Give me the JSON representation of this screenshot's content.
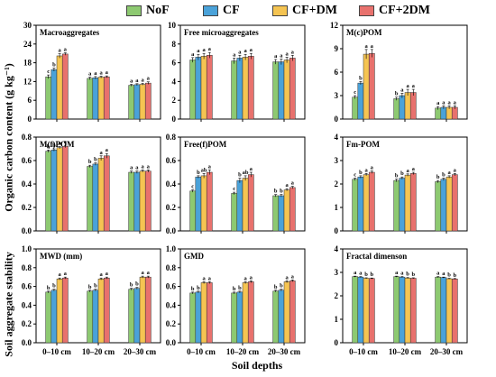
{
  "legend": {
    "items": [
      {
        "label": "NoF",
        "color": "#8dc971"
      },
      {
        "label": "CF",
        "color": "#4aa2d9"
      },
      {
        "label": "CF+DM",
        "color": "#f5c452"
      },
      {
        "label": "CF+2DM",
        "color": "#e8716d"
      }
    ]
  },
  "row_labels": {
    "organic_carbon": "Organic carbon content (g kg⁻¹)",
    "aggregate_stability": "Soil aggregate stability"
  },
  "x_axis_title": "Soil depths",
  "chart_data": [
    {
      "type": "bar",
      "title": "Macroaggregates",
      "categories": [
        "0–10 cm",
        "10–20 cm",
        "20–30 cm"
      ],
      "yticks": [
        "0",
        "6",
        "12",
        "18",
        "24",
        "30"
      ],
      "ylim": [
        0,
        30
      ],
      "series": [
        {
          "name": "NoF",
          "values": [
            13.5,
            13.0,
            10.8
          ],
          "errors": [
            0.6,
            0.4,
            0.3
          ],
          "letters": [
            "c",
            "a",
            "a"
          ]
        },
        {
          "name": "CF",
          "values": [
            15.8,
            13.2,
            11.0
          ],
          "errors": [
            0.5,
            0.4,
            0.3
          ],
          "letters": [
            "b",
            "a",
            "a"
          ]
        },
        {
          "name": "CF+DM",
          "values": [
            20.2,
            13.4,
            11.1
          ],
          "errors": [
            0.7,
            0.3,
            0.3
          ],
          "letters": [
            "a",
            "a",
            "a"
          ]
        },
        {
          "name": "CF+2DM",
          "values": [
            20.8,
            13.5,
            11.5
          ],
          "errors": [
            0.4,
            0.3,
            0.4
          ],
          "letters": [
            "a",
            "a",
            "a"
          ]
        }
      ]
    },
    {
      "type": "bar",
      "title": "Free microaggregates",
      "categories": [
        "0–10 cm",
        "10–20 cm",
        "20–30 cm"
      ],
      "yticks": [
        "0",
        "2",
        "4",
        "6",
        "8",
        "10"
      ],
      "ylim": [
        0,
        10
      ],
      "series": [
        {
          "name": "NoF",
          "values": [
            6.3,
            6.2,
            6.1
          ],
          "errors": [
            0.25,
            0.3,
            0.25
          ],
          "letters": [
            "a",
            "a",
            "a"
          ]
        },
        {
          "name": "CF",
          "values": [
            6.6,
            6.5,
            6.1
          ],
          "errors": [
            0.3,
            0.3,
            0.3
          ],
          "letters": [
            "a",
            "a",
            "a"
          ]
        },
        {
          "name": "CF+DM",
          "values": [
            6.7,
            6.6,
            6.3
          ],
          "errors": [
            0.3,
            0.3,
            0.3
          ],
          "letters": [
            "a",
            "a",
            "a"
          ]
        },
        {
          "name": "CF+2DM",
          "values": [
            6.8,
            6.7,
            6.5
          ],
          "errors": [
            0.3,
            0.3,
            0.3
          ],
          "letters": [
            "a",
            "a",
            "a"
          ]
        }
      ]
    },
    {
      "type": "bar",
      "title": "M(c)POM",
      "categories": [
        "0–10 cm",
        "10–20 cm",
        "20–30 cm"
      ],
      "yticks": [
        "0",
        "3",
        "6",
        "9",
        "12"
      ],
      "ylim": [
        0,
        12
      ],
      "series": [
        {
          "name": "NoF",
          "values": [
            2.8,
            2.6,
            1.4
          ],
          "errors": [
            0.2,
            0.2,
            0.2
          ],
          "letters": [
            "c",
            "b",
            "a"
          ]
        },
        {
          "name": "CF",
          "values": [
            4.6,
            3.0,
            1.5
          ],
          "errors": [
            0.2,
            0.3,
            0.2
          ],
          "letters": [
            "b",
            "a",
            "a"
          ]
        },
        {
          "name": "CF+DM",
          "values": [
            8.3,
            3.4,
            1.5
          ],
          "errors": [
            0.6,
            0.4,
            0.2
          ],
          "letters": [
            "a",
            "a",
            "a"
          ]
        },
        {
          "name": "CF+2DM",
          "values": [
            8.4,
            3.4,
            1.5
          ],
          "errors": [
            0.5,
            0.4,
            0.2
          ],
          "letters": [
            "a",
            "a",
            "a"
          ]
        }
      ]
    },
    {
      "type": "bar",
      "title": "M(f)POM",
      "categories": [
        "0–10 cm",
        "10–20 cm",
        "20–30 cm"
      ],
      "yticks": [
        "0.0",
        "0.2",
        "0.4",
        "0.6",
        "0.8"
      ],
      "ylim": [
        0,
        0.8
      ],
      "series": [
        {
          "name": "NoF",
          "values": [
            0.68,
            0.55,
            0.5
          ],
          "errors": [
            0.01,
            0.01,
            0.01
          ],
          "letters": [
            "b",
            "b",
            "a"
          ]
        },
        {
          "name": "CF",
          "values": [
            0.69,
            0.57,
            0.5
          ],
          "errors": [
            0.01,
            0.01,
            0.01
          ],
          "letters": [
            "b",
            "b",
            "a"
          ]
        },
        {
          "name": "CF+DM",
          "values": [
            0.71,
            0.62,
            0.51
          ],
          "errors": [
            0.01,
            0.02,
            0.01
          ],
          "letters": [
            "a",
            "a",
            "a"
          ]
        },
        {
          "name": "CF+2DM",
          "values": [
            0.72,
            0.64,
            0.51
          ],
          "errors": [
            0.01,
            0.02,
            0.01
          ],
          "letters": [
            "a",
            "a",
            "a"
          ]
        }
      ]
    },
    {
      "type": "bar",
      "title": "Free(f)POM",
      "categories": [
        "0–10 cm",
        "10–20 cm",
        "20–30 cm"
      ],
      "yticks": [
        "0.0",
        "0.2",
        "0.4",
        "0.6",
        "0.8"
      ],
      "ylim": [
        0,
        0.8
      ],
      "series": [
        {
          "name": "NoF",
          "values": [
            0.34,
            0.32,
            0.3
          ],
          "errors": [
            0.01,
            0.01,
            0.01
          ],
          "letters": [
            "c",
            "c",
            "b"
          ]
        },
        {
          "name": "CF",
          "values": [
            0.46,
            0.43,
            0.3
          ],
          "errors": [
            0.01,
            0.02,
            0.01
          ],
          "letters": [
            "b",
            "b",
            "b"
          ]
        },
        {
          "name": "CF+DM",
          "values": [
            0.47,
            0.45,
            0.35
          ],
          "errors": [
            0.02,
            0.02,
            0.01
          ],
          "letters": [
            "ab",
            "ab",
            "a"
          ]
        },
        {
          "name": "CF+2DM",
          "values": [
            0.5,
            0.48,
            0.37
          ],
          "errors": [
            0.02,
            0.02,
            0.01
          ],
          "letters": [
            "a",
            "a",
            "a"
          ]
        }
      ]
    },
    {
      "type": "bar",
      "title": "Fm-POM",
      "categories": [
        "0–10 cm",
        "10–20 cm",
        "20–30 cm"
      ],
      "yticks": [
        "0",
        "1",
        "2",
        "3",
        "4"
      ],
      "ylim": [
        0,
        4
      ],
      "series": [
        {
          "name": "NoF",
          "values": [
            2.2,
            2.15,
            2.1
          ],
          "errors": [
            0.05,
            0.06,
            0.05
          ],
          "letters": [
            "c",
            "b",
            "b"
          ]
        },
        {
          "name": "CF",
          "values": [
            2.3,
            2.25,
            2.2
          ],
          "errors": [
            0.05,
            0.05,
            0.05
          ],
          "letters": [
            "b",
            "b",
            "b"
          ]
        },
        {
          "name": "CF+DM",
          "values": [
            2.4,
            2.38,
            2.3
          ],
          "errors": [
            0.05,
            0.05,
            0.05
          ],
          "letters": [
            "a",
            "a",
            "a"
          ]
        },
        {
          "name": "CF+2DM",
          "values": [
            2.5,
            2.45,
            2.4
          ],
          "errors": [
            0.05,
            0.05,
            0.05
          ],
          "letters": [
            "a",
            "a",
            "a"
          ]
        }
      ]
    },
    {
      "type": "bar",
      "title": "MWD (mm)",
      "categories": [
        "0–10 cm",
        "10–20 cm",
        "20–30 cm"
      ],
      "yticks": [
        "0.0",
        "0.2",
        "0.4",
        "0.6",
        "0.8",
        "1.0"
      ],
      "ylim": [
        0,
        1.0
      ],
      "series": [
        {
          "name": "NoF",
          "values": [
            0.54,
            0.55,
            0.57
          ],
          "errors": [
            0.01,
            0.01,
            0.01
          ],
          "letters": [
            "b",
            "b",
            "b"
          ]
        },
        {
          "name": "CF",
          "values": [
            0.56,
            0.56,
            0.58
          ],
          "errors": [
            0.01,
            0.01,
            0.01
          ],
          "letters": [
            "b",
            "b",
            "b"
          ]
        },
        {
          "name": "CF+DM",
          "values": [
            0.68,
            0.68,
            0.7
          ],
          "errors": [
            0.01,
            0.01,
            0.01
          ],
          "letters": [
            "a",
            "a",
            "a"
          ]
        },
        {
          "name": "CF+2DM",
          "values": [
            0.69,
            0.69,
            0.7
          ],
          "errors": [
            0.01,
            0.01,
            0.01
          ],
          "letters": [
            "a",
            "a",
            "a"
          ]
        }
      ]
    },
    {
      "type": "bar",
      "title": "GMD",
      "categories": [
        "0–10 cm",
        "10–20 cm",
        "20–30 cm"
      ],
      "yticks": [
        "0.0",
        "0.2",
        "0.4",
        "0.6",
        "0.8",
        "1.0"
      ],
      "ylim": [
        0,
        1.0
      ],
      "series": [
        {
          "name": "NoF",
          "values": [
            0.53,
            0.53,
            0.55
          ],
          "errors": [
            0.01,
            0.01,
            0.01
          ],
          "letters": [
            "b",
            "b",
            "b"
          ]
        },
        {
          "name": "CF",
          "values": [
            0.54,
            0.54,
            0.56
          ],
          "errors": [
            0.01,
            0.01,
            0.01
          ],
          "letters": [
            "b",
            "b",
            "b"
          ]
        },
        {
          "name": "CF+DM",
          "values": [
            0.64,
            0.64,
            0.65
          ],
          "errors": [
            0.01,
            0.01,
            0.01
          ],
          "letters": [
            "a",
            "a",
            "a"
          ]
        },
        {
          "name": "CF+2DM",
          "values": [
            0.64,
            0.65,
            0.66
          ],
          "errors": [
            0.01,
            0.01,
            0.01
          ],
          "letters": [
            "a",
            "a",
            "a"
          ]
        }
      ]
    },
    {
      "type": "bar",
      "title": "Fractal dimenson",
      "categories": [
        "0–10 cm",
        "10–20 cm",
        "20–30 cm"
      ],
      "yticks": [
        "0",
        "1",
        "2",
        "3",
        "4"
      ],
      "ylim": [
        0,
        4
      ],
      "series": [
        {
          "name": "NoF",
          "values": [
            2.82,
            2.82,
            2.8
          ],
          "errors": [
            0.02,
            0.02,
            0.02
          ],
          "letters": [
            "a",
            "a",
            "a"
          ]
        },
        {
          "name": "CF",
          "values": [
            2.8,
            2.8,
            2.78
          ],
          "errors": [
            0.02,
            0.02,
            0.02
          ],
          "letters": [
            "a",
            "a",
            "a"
          ]
        },
        {
          "name": "CF+DM",
          "values": [
            2.75,
            2.76,
            2.73
          ],
          "errors": [
            0.02,
            0.02,
            0.02
          ],
          "letters": [
            "b",
            "b",
            "b"
          ]
        },
        {
          "name": "CF+2DM",
          "values": [
            2.74,
            2.75,
            2.72
          ],
          "errors": [
            0.02,
            0.02,
            0.02
          ],
          "letters": [
            "b",
            "b",
            "b"
          ]
        }
      ]
    }
  ]
}
